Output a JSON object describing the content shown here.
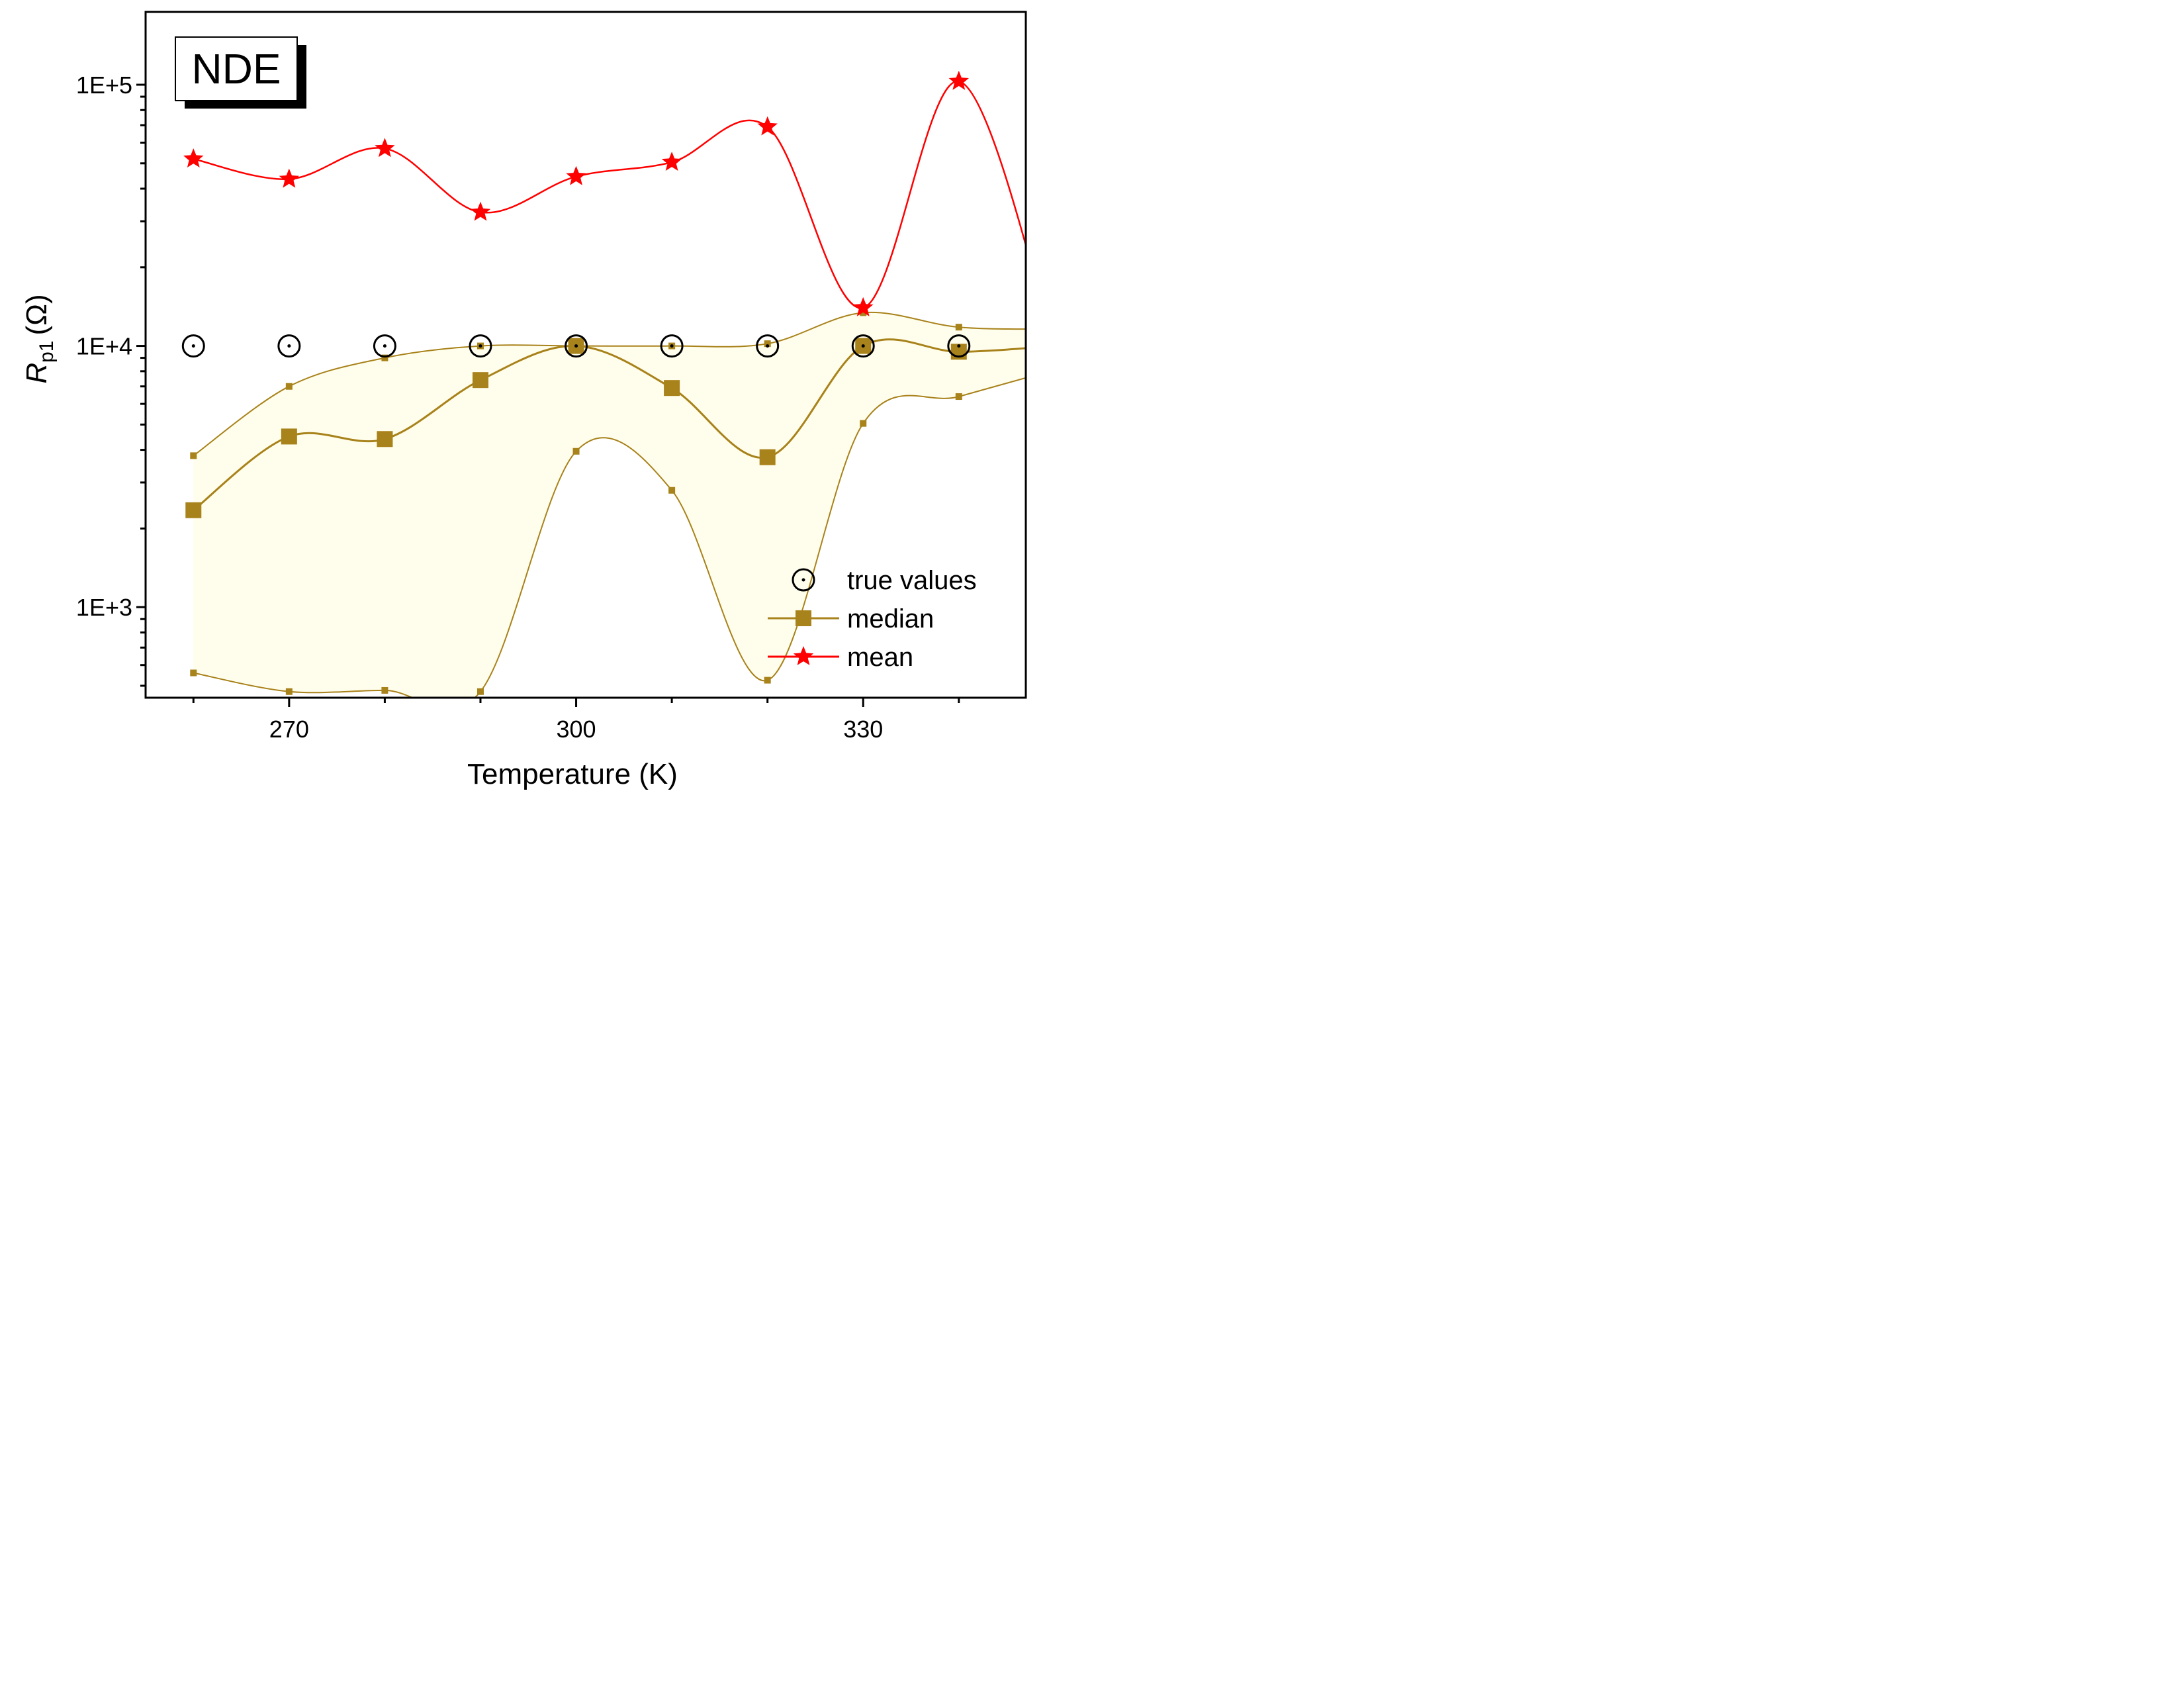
{
  "chart_data": {
    "type": "line",
    "badge": "NDE",
    "xlabel": "Temperature (K)",
    "ylabel_main": "R",
    "ylabel_sub": "p1",
    "ylabel_unit": "(Ω)",
    "x_scale": "linear",
    "y_scale": "log",
    "xlim": [
      255,
      347
    ],
    "ylim": [
      450,
      190000
    ],
    "x_ticks": [
      {
        "value": 270,
        "label": "270"
      },
      {
        "value": 300,
        "label": "300"
      },
      {
        "value": 330,
        "label": "330"
      }
    ],
    "y_ticks": [
      {
        "value": 1000,
        "label": "1E+3"
      },
      {
        "value": 10000,
        "label": "1E+4"
      },
      {
        "value": 100000,
        "label": "1E+5"
      }
    ],
    "x": [
      260,
      270,
      280,
      290,
      300,
      310,
      320,
      330,
      340,
      350
    ],
    "series": [
      {
        "name": "true values",
        "marker": "circle-dot",
        "color": "#000000",
        "values": [
          10000,
          10000,
          10000,
          10000,
          10000,
          10000,
          10000,
          10000,
          10000,
          10000
        ]
      },
      {
        "name": "median",
        "marker": "square",
        "color": "#A8821A",
        "values": [
          2350,
          4500,
          4400,
          7400,
          10000,
          6900,
          3750,
          10000,
          9500,
          10000
        ]
      },
      {
        "name": "mean",
        "marker": "star",
        "color": "#FF0000",
        "values": [
          52000,
          43500,
          57000,
          32500,
          44500,
          50500,
          69000,
          14000,
          103000,
          10000
        ]
      }
    ],
    "band": {
      "color": "#A8821A",
      "fill": "#FFFDEB",
      "upper": [
        3800,
        7000,
        9000,
        10000,
        10000,
        10000,
        10200,
        13400,
        11800,
        11600
      ],
      "lower": [
        560,
        475,
        480,
        475,
        3950,
        2800,
        525,
        5050,
        6400,
        8100
      ]
    },
    "legend": {
      "position": "bottom-right",
      "items": [
        "true values",
        "median",
        "mean"
      ]
    }
  }
}
